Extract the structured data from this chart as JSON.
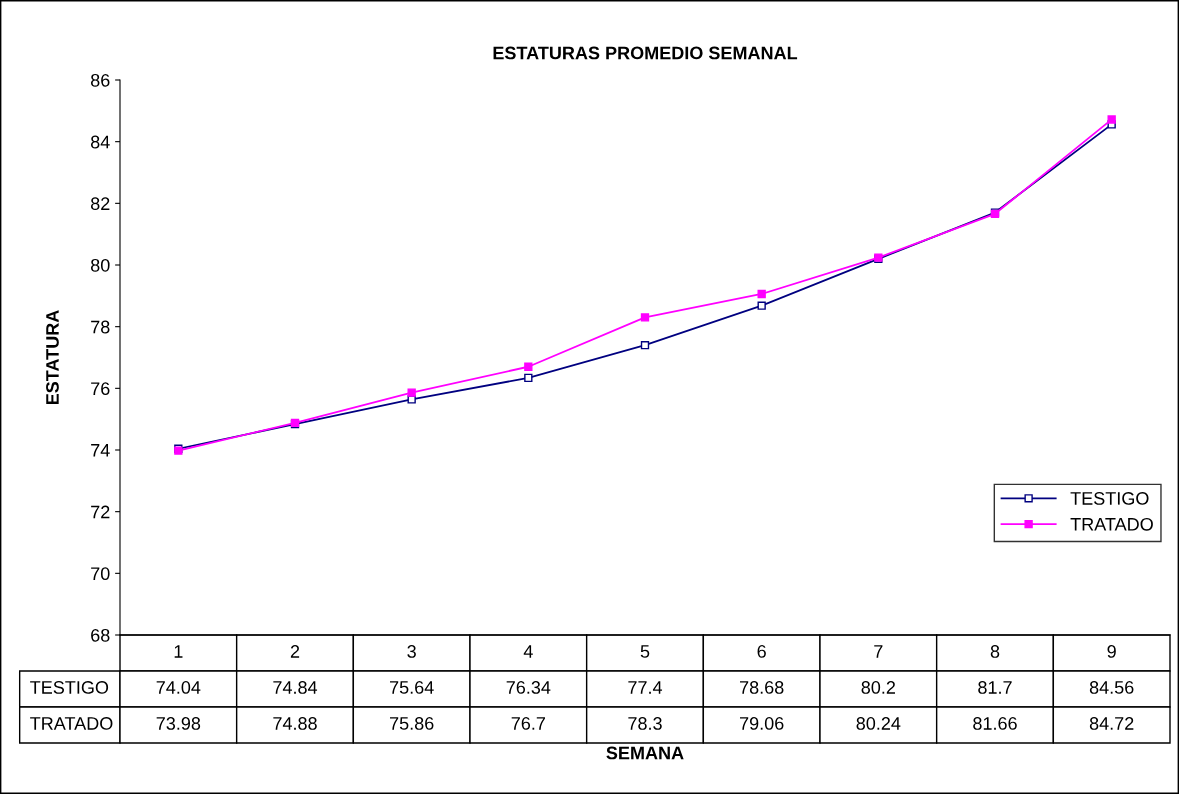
{
  "chart_data": {
    "type": "line",
    "title": "ESTATURAS PROMEDIO SEMANAL",
    "xlabel": "SEMANA",
    "ylabel": "ESTATURA",
    "categories": [
      "1",
      "2",
      "3",
      "4",
      "5",
      "6",
      "7",
      "8",
      "9"
    ],
    "series": [
      {
        "name": "TESTIGO",
        "color": "#000080",
        "values": [
          74.04,
          74.84,
          75.64,
          76.34,
          77.4,
          78.68,
          80.2,
          81.7,
          84.56
        ]
      },
      {
        "name": "TRATADO",
        "color": "#ff00ff",
        "values": [
          73.98,
          74.88,
          75.86,
          76.7,
          78.3,
          79.06,
          80.24,
          81.66,
          84.72
        ]
      }
    ],
    "ylim": [
      68,
      86
    ],
    "yticks": [
      68,
      70,
      72,
      74,
      76,
      78,
      80,
      82,
      84,
      86
    ],
    "marker": "square",
    "line_style": "solid",
    "legend": "right",
    "grid": false,
    "data_labels": true
  }
}
